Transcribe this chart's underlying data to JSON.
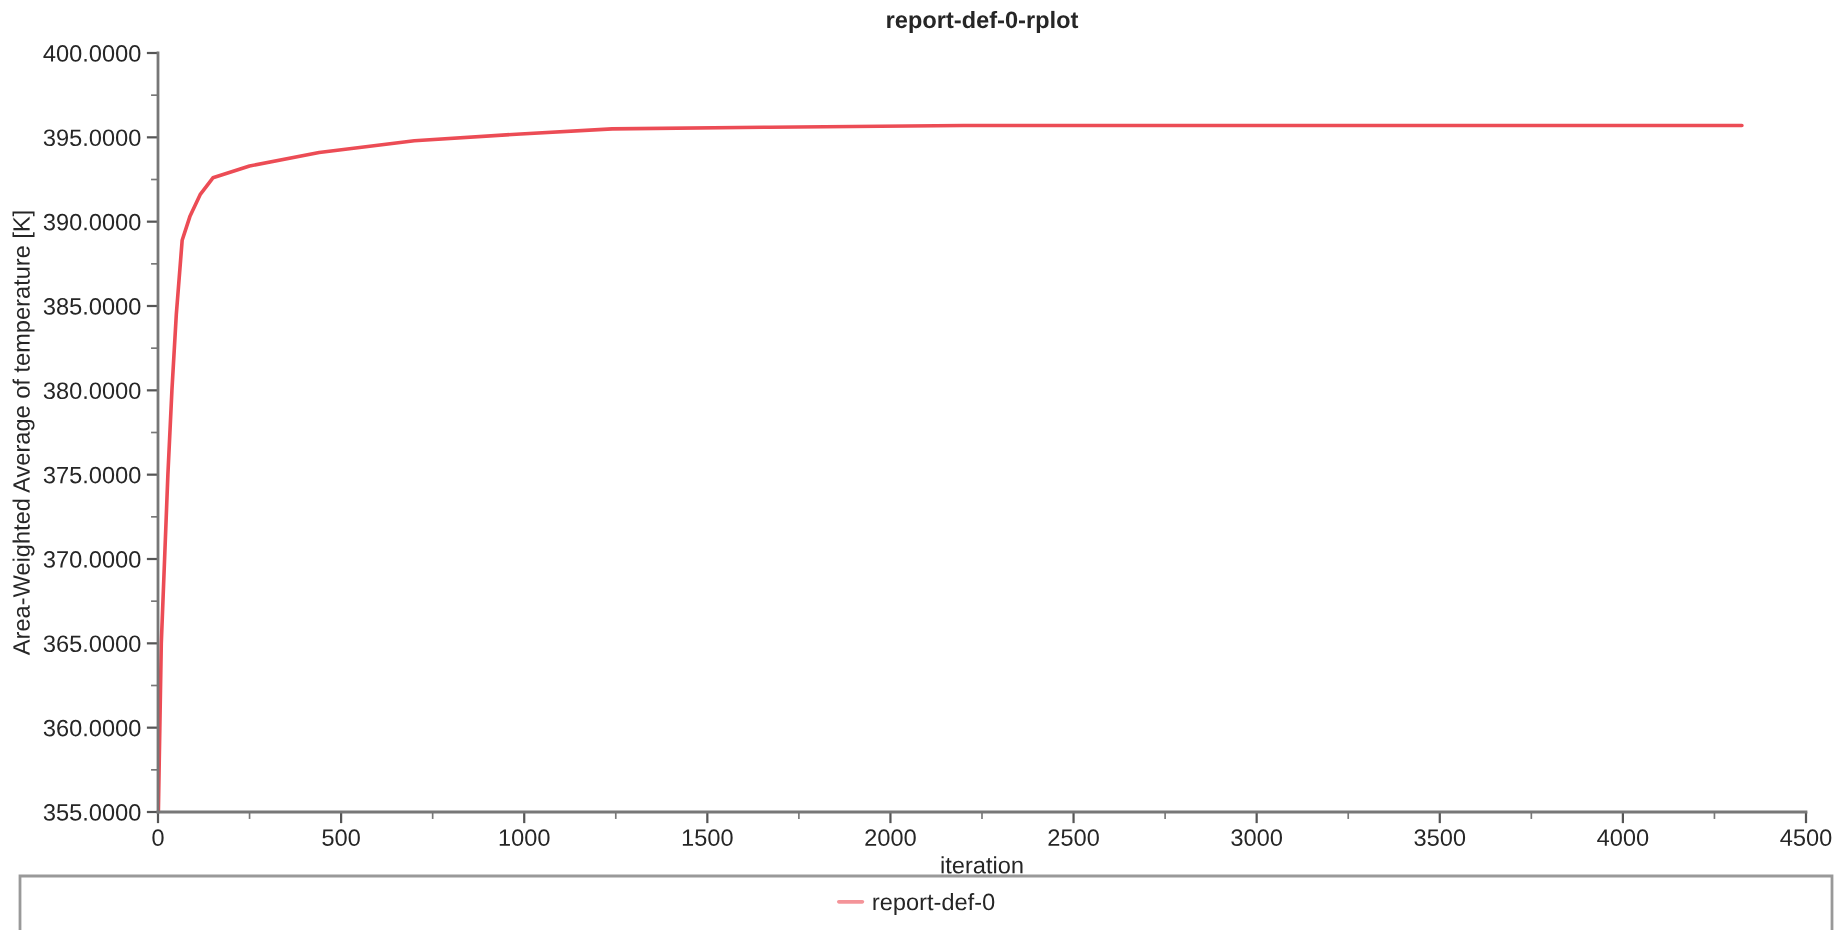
{
  "chart_data": {
    "type": "line",
    "title": "report-def-0-rplot",
    "xlabel": "iteration",
    "ylabel": "Area-Weighted Average of temperature [K]",
    "x": [
      1,
      5,
      9,
      18,
      27,
      38,
      50,
      66,
      87,
      115,
      150,
      250,
      440,
      700,
      990,
      1240,
      1670,
      2200,
      4325
    ],
    "series": [
      {
        "name": "report-def-0",
        "color": "#ec4c55",
        "values": [
          355,
          360,
          365,
          370,
          375,
          380,
          384.5,
          388.9,
          390.3,
          391.6,
          392.6,
          393.3,
          394.1,
          394.8,
          395.2,
          395.5,
          395.6,
          395.7,
          395.7
        ]
      }
    ],
    "xlim": [
      0,
      4500
    ],
    "xticks": [
      0,
      500,
      1000,
      1500,
      2000,
      2500,
      3000,
      3500,
      4000,
      4500
    ],
    "ylim": [
      355,
      400
    ],
    "yticks": [
      {
        "value": 355,
        "label": "355.0000"
      },
      {
        "value": 360,
        "label": "360.0000"
      },
      {
        "value": 365,
        "label": "365.0000"
      },
      {
        "value": 370,
        "label": "370.0000"
      },
      {
        "value": 375,
        "label": "375.0000"
      },
      {
        "value": 380,
        "label": "380.0000"
      },
      {
        "value": 385,
        "label": "385.0000"
      },
      {
        "value": 390,
        "label": "390.0000"
      },
      {
        "value": 395,
        "label": "395.0000"
      },
      {
        "value": 400,
        "label": "400.0000"
      }
    ],
    "legend": "bottom"
  }
}
